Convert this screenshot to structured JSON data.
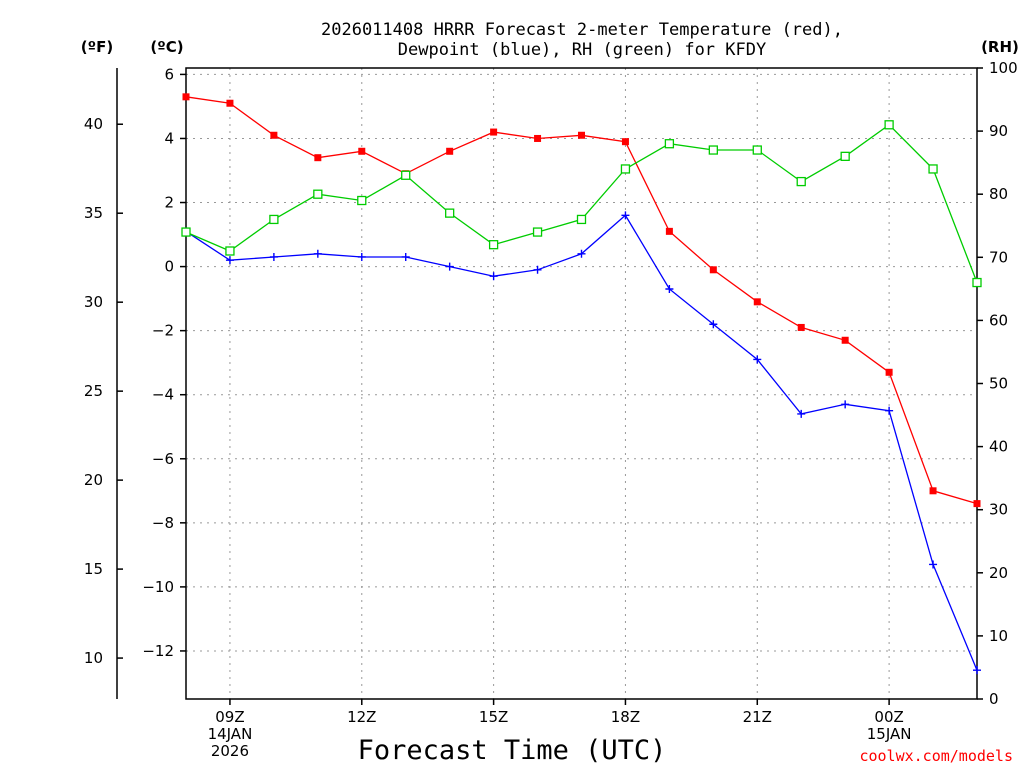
{
  "chart_data": {
    "type": "line",
    "title_lines": [
      "2026011408 HRRR Forecast 2-meter Temperature (red),",
      "Dewpoint (blue), RH (green) for KFDY"
    ],
    "xlabel": "Forecast Time (UTC)",
    "credit": "coolwx.com/models",
    "units": {
      "f": "(ºF)",
      "c": "(ºC)",
      "rh": "(RH)"
    },
    "x_range": [
      8,
      26
    ],
    "x_ticks": [
      {
        "x": 9,
        "lines": [
          "09Z",
          "14JAN",
          "2026"
        ]
      },
      {
        "x": 12,
        "lines": [
          "12Z"
        ]
      },
      {
        "x": 15,
        "lines": [
          "15Z"
        ]
      },
      {
        "x": 18,
        "lines": [
          "18Z"
        ]
      },
      {
        "x": 21,
        "lines": [
          "21Z"
        ]
      },
      {
        "x": 24,
        "lines": [
          "00Z",
          "15JAN"
        ]
      }
    ],
    "celsius_axis": {
      "ylim": [
        -13.5,
        6.2
      ],
      "ticks": [
        -12,
        -10,
        -8,
        -6,
        -4,
        -2,
        0,
        2,
        4,
        6
      ],
      "tick_labels": [
        "−12",
        "−10",
        "−8",
        "−6",
        "−4",
        "−2",
        "0",
        "2",
        "4",
        "6"
      ]
    },
    "fahrenheit_axis": {
      "ticks": [
        10,
        15,
        20,
        25,
        30,
        35,
        40
      ]
    },
    "rh_axis": {
      "ylim": [
        0,
        100
      ],
      "ticks": [
        0,
        10,
        20,
        30,
        40,
        50,
        60,
        70,
        80,
        90,
        100
      ]
    },
    "series": [
      {
        "name": "Temperature",
        "color": "#ff0000",
        "marker": "filled-square",
        "axis": "celsius",
        "x": [
          8,
          9,
          10,
          11,
          12,
          13,
          14,
          15,
          16,
          17,
          18,
          19,
          20,
          21,
          22,
          23,
          24,
          25,
          26
        ],
        "values": [
          5.3,
          5.1,
          4.1,
          3.4,
          3.6,
          2.9,
          3.6,
          4.2,
          4.0,
          4.1,
          3.9,
          1.1,
          -0.1,
          -1.1,
          -1.9,
          -2.3,
          -3.3,
          -7.0,
          -7.4
        ]
      },
      {
        "name": "Dewpoint",
        "color": "#0000ff",
        "marker": "plus",
        "axis": "celsius",
        "x": [
          8,
          9,
          10,
          11,
          12,
          13,
          14,
          15,
          16,
          17,
          18,
          19,
          20,
          21,
          22,
          23,
          24,
          25,
          26
        ],
        "values": [
          1.1,
          0.2,
          0.3,
          0.4,
          0.3,
          0.3,
          0.0,
          -0.3,
          -0.1,
          0.4,
          1.6,
          -0.7,
          -1.8,
          -2.9,
          -4.6,
          -4.3,
          -4.5,
          -9.3,
          -12.6
        ]
      },
      {
        "name": "RH",
        "color": "#00cc00",
        "marker": "open-square",
        "axis": "rh",
        "x": [
          8,
          9,
          10,
          11,
          12,
          13,
          14,
          15,
          16,
          17,
          18,
          19,
          20,
          21,
          22,
          23,
          24,
          25,
          26
        ],
        "values": [
          74,
          71,
          76,
          80,
          79,
          83,
          77,
          72,
          74,
          76,
          84,
          88,
          87,
          87,
          82,
          86,
          91,
          84,
          66
        ]
      }
    ]
  }
}
